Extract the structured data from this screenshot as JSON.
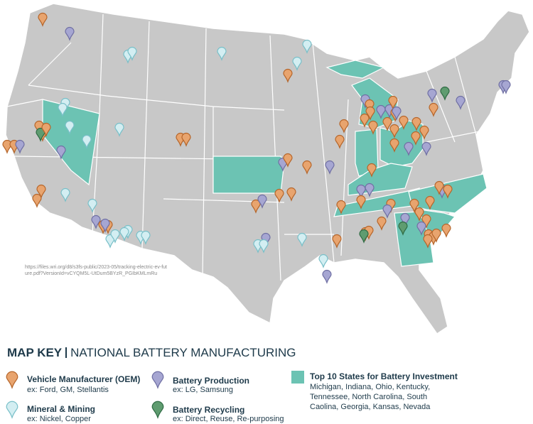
{
  "map": {
    "source_note": "https://files.wri.org/d8/s3fs-public/2023-05/tracking-electric-ev-future.pdf?VersionId=vCYQM5L-UtDum5BYzR_PGIbKMLmRu"
  },
  "key": {
    "title": "MAP KEY",
    "subtitle": "NATIONAL BATTERY MANUFACTURING",
    "items": [
      {
        "name": "Vehicle Manufacturer (OEM)",
        "example": "ex: Ford, GM, Stellantis"
      },
      {
        "name": "Mineral & Mining",
        "example": "ex: Nickel, Copper"
      },
      {
        "name": "Battery Production",
        "example": "ex: LG, Samsung"
      },
      {
        "name": "Battery Recycling",
        "example": "ex: Direct, Reuse, Re-purposing"
      }
    ],
    "top_states": {
      "name": "Top 10 States for Battery Investment",
      "description": "Michigan, Indiana, Ohio, Kentucky, Tennessee, North Carolina, South Caolina, Georgia, Kansas, Nevada"
    }
  }
}
